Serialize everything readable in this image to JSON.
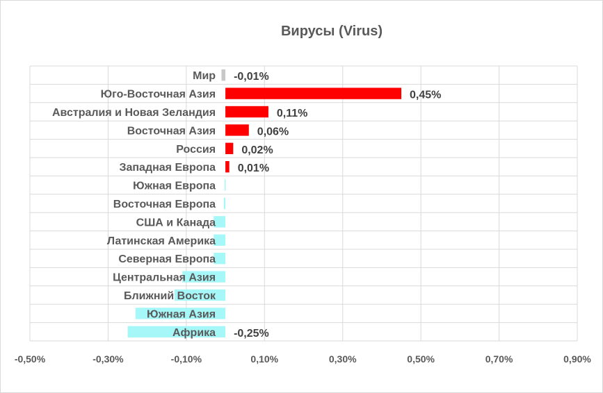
{
  "chart_data": {
    "type": "bar",
    "orientation": "horizontal",
    "title": "Вирусы (Virus)",
    "xlabel": "",
    "ylabel": "",
    "xlim": [
      -0.5,
      0.9
    ],
    "x_ticks": [
      "-0,50%",
      "-0,30%",
      "-0,10%",
      "0,10%",
      "0,30%",
      "0,50%",
      "0,70%",
      "0,90%"
    ],
    "grid": true,
    "legend": "none",
    "categories": [
      "Мир",
      "Юго-Восточная Азия",
      "Австралия и Новая Зеландия",
      "Восточная Азия",
      "Россия",
      "Западная Европа",
      "Южная Европа",
      "Восточная Европа",
      "США и Канада",
      "Латинская Америка",
      "Северная Европа",
      "Центральная Азия",
      "Ближний Восток",
      "Южная Азия",
      "Африка"
    ],
    "values": [
      -0.01,
      0.45,
      0.11,
      0.06,
      0.02,
      0.01,
      -0.002,
      -0.004,
      -0.03,
      -0.03,
      -0.03,
      -0.11,
      -0.13,
      -0.23,
      -0.25
    ],
    "data_labels": [
      "-0,01%",
      "0,45%",
      "0,11%",
      "0,06%",
      "0,02%",
      "0,01%",
      "",
      "",
      "",
      "",
      "",
      "",
      "",
      "",
      "-0,25%"
    ],
    "colors": {
      "world": "#c8c8c8",
      "positive": "#ff0000",
      "negative": "#a6f7f7"
    }
  }
}
